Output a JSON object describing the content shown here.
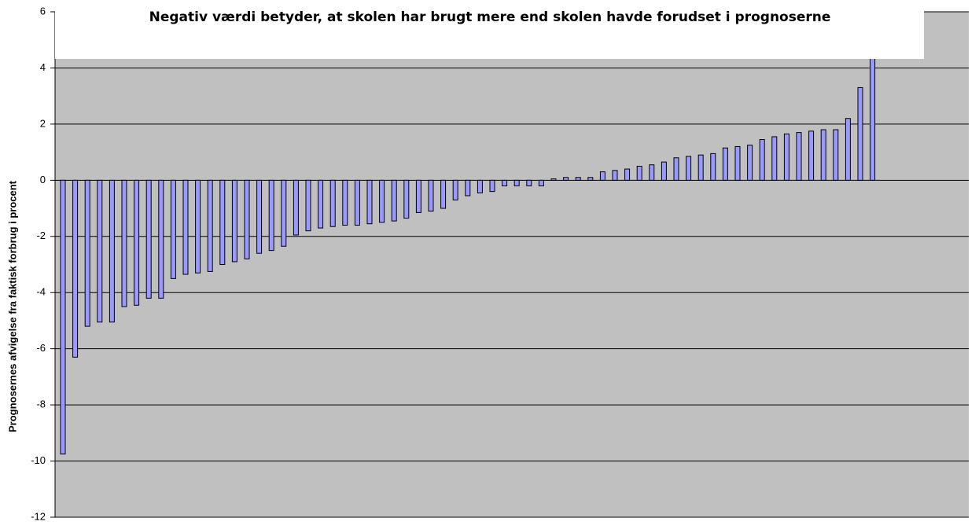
{
  "chart_data": {
    "type": "bar",
    "title": "Negativ værdi betyder, at skolen har brugt mere end skolen havde forudset i prognoserne",
    "y_label": "Prognosernes afvigelse fra faktisk forbrug i procent",
    "values": [
      -9.75,
      -6.3,
      -5.2,
      -5.05,
      -5.05,
      -4.5,
      -4.45,
      -4.2,
      -4.2,
      -3.5,
      -3.35,
      -3.3,
      -3.25,
      -3.0,
      -2.9,
      -2.8,
      -2.6,
      -2.5,
      -2.35,
      -1.95,
      -1.8,
      -1.7,
      -1.65,
      -1.6,
      -1.6,
      -1.55,
      -1.5,
      -1.45,
      -1.35,
      -1.15,
      -1.1,
      -1.0,
      -0.7,
      -0.55,
      -0.45,
      -0.4,
      -0.2,
      -0.2,
      -0.2,
      -0.2,
      0.05,
      0.1,
      0.1,
      0.1,
      0.3,
      0.35,
      0.4,
      0.5,
      0.55,
      0.65,
      0.8,
      0.85,
      0.9,
      0.95,
      1.15,
      1.2,
      1.25,
      1.45,
      1.55,
      1.65,
      1.7,
      1.75,
      1.8,
      1.8,
      2.2,
      3.3,
      5.5
    ],
    "color": "#9999ff",
    "ylim": [
      -12,
      6
    ],
    "yticks": [
      -12,
      -10,
      -8,
      -6,
      -4,
      -2,
      0,
      2,
      4,
      6
    ],
    "grid": true
  }
}
